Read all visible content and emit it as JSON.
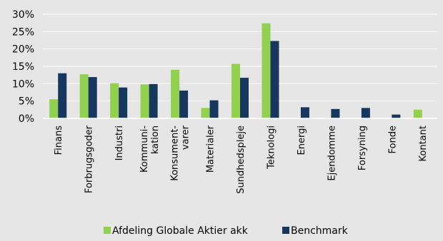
{
  "chart_data": {
    "type": "bar",
    "title": "",
    "xlabel": "",
    "ylabel": "",
    "ylim": [
      0,
      30
    ],
    "yticks": [
      "0%",
      "5%",
      "10%",
      "15%",
      "20%",
      "25%",
      "30%"
    ],
    "ytick_values": [
      0,
      5,
      10,
      15,
      20,
      25,
      30
    ],
    "grid": "horizontal",
    "legend": "bottom",
    "categories": [
      [
        "Finans"
      ],
      [
        "Forbrugsgoder"
      ],
      [
        "Industri"
      ],
      [
        "Kommuni-",
        "kation"
      ],
      [
        "Konsument-",
        "varer"
      ],
      [
        "Materialer"
      ],
      [
        "Sundhedspleje"
      ],
      [
        "Teknologi"
      ],
      [
        "Energi"
      ],
      [
        "Ejendomme"
      ],
      [
        "Forsyning"
      ],
      [
        "Fonde"
      ],
      [
        "Kontant"
      ]
    ],
    "series": [
      {
        "name": "Afdeling Globale Aktier akk",
        "color": "#92d050",
        "values": [
          5.5,
          12.7,
          10.1,
          9.8,
          14.0,
          3.0,
          15.7,
          27.4,
          0,
          0,
          0,
          0,
          2.5
        ]
      },
      {
        "name": "Benchmark",
        "color": "#17375e",
        "values": [
          13.0,
          11.9,
          8.9,
          9.9,
          8.0,
          5.2,
          11.7,
          22.3,
          3.2,
          2.7,
          3.0,
          1.1,
          0
        ]
      }
    ]
  }
}
